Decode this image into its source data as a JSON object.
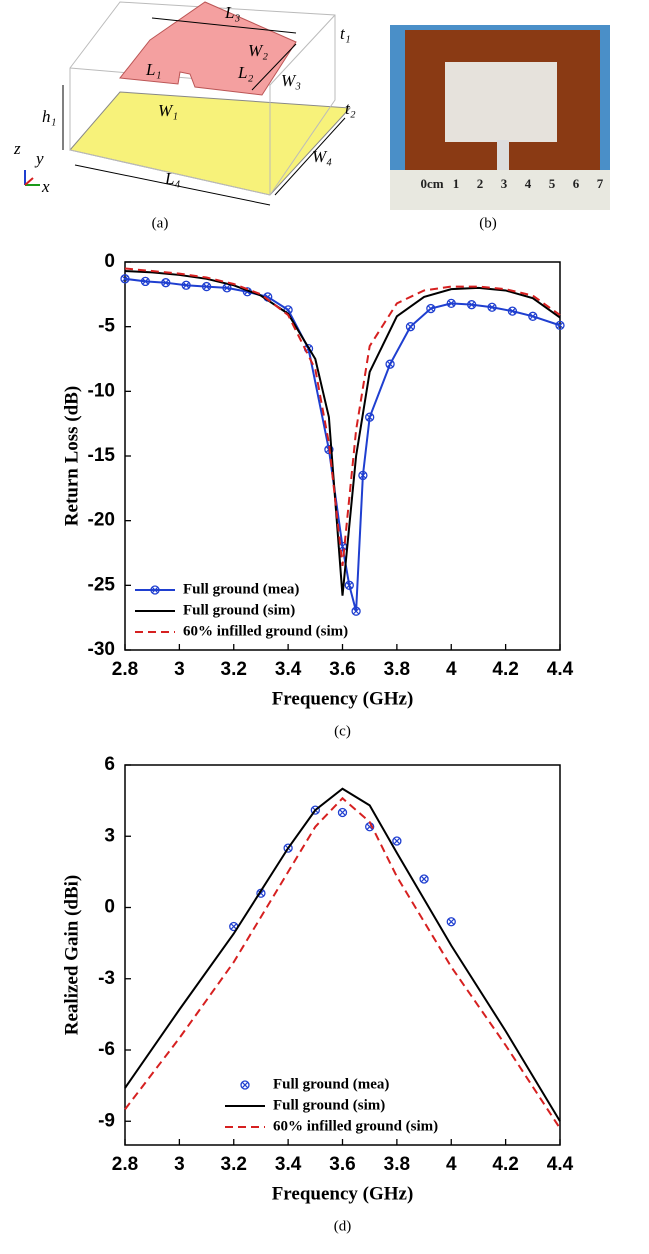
{
  "figure": {
    "captions": [
      "(a)",
      "(b)"
    ],
    "diagram": {
      "labels": [
        "L₃",
        "t₁",
        "W₂",
        "L₁",
        "L₂",
        "W₃",
        "h₁",
        "W₁",
        "t₂",
        "W₄",
        "L₄",
        "z",
        "y",
        "x"
      ]
    },
    "photo": {
      "ruler_labels": [
        "0cm",
        "1",
        "2",
        "3",
        "4",
        "5",
        "6",
        "7"
      ]
    }
  },
  "chart_data": [
    {
      "type": "line",
      "caption": "(c)",
      "x_label": "Frequency (GHz)",
      "y_label": "Return Loss (dB)",
      "xlim": [
        2.8,
        4.4
      ],
      "xticks": [
        2.8,
        3.0,
        3.2,
        3.4,
        3.6,
        3.8,
        4.0,
        4.2,
        4.4
      ],
      "ylim": [
        -30,
        0
      ],
      "yticks": [
        -30,
        -25,
        -20,
        -15,
        -10,
        -5,
        0
      ],
      "legend": "lower-left",
      "series": [
        {
          "name": "Full ground (mea)",
          "color": "#1f3fd0",
          "mode": "line+markers",
          "dash": false,
          "x": [
            2.8,
            2.875,
            2.95,
            3.025,
            3.1,
            3.175,
            3.25,
            3.325,
            3.4,
            3.475,
            3.55,
            3.6,
            3.625,
            3.65,
            3.675,
            3.7,
            3.775,
            3.85,
            3.925,
            4.0,
            4.075,
            4.15,
            4.225,
            4.3,
            4.4
          ],
          "values": [
            -1.3,
            -1.5,
            -1.6,
            -1.8,
            -1.9,
            -2.0,
            -2.3,
            -2.7,
            -3.7,
            -6.7,
            -14.5,
            -22,
            -25,
            -27,
            -16.5,
            -12,
            -7.9,
            -5.0,
            -3.6,
            -3.2,
            -3.3,
            -3.5,
            -3.8,
            -4.2,
            -4.9
          ]
        },
        {
          "name": "Full ground (sim)",
          "color": "#000000",
          "mode": "line",
          "dash": false,
          "x": [
            2.8,
            2.9,
            3.0,
            3.1,
            3.2,
            3.3,
            3.4,
            3.5,
            3.55,
            3.6,
            3.65,
            3.7,
            3.8,
            3.9,
            4.0,
            4.1,
            4.2,
            4.3,
            4.4
          ],
          "values": [
            -0.7,
            -0.8,
            -1.0,
            -1.3,
            -1.8,
            -2.6,
            -4.0,
            -7.5,
            -12,
            -25.8,
            -15,
            -8.5,
            -4.2,
            -2.7,
            -2.1,
            -2.0,
            -2.2,
            -2.8,
            -4.3
          ]
        },
        {
          "name": "60% infilled ground (sim)",
          "color": "#d62020",
          "mode": "line",
          "dash": true,
          "x": [
            2.8,
            2.9,
            3.0,
            3.1,
            3.2,
            3.3,
            3.4,
            3.5,
            3.55,
            3.6,
            3.65,
            3.7,
            3.8,
            3.9,
            4.0,
            4.1,
            4.2,
            4.3,
            4.4
          ],
          "values": [
            -0.5,
            -0.7,
            -0.9,
            -1.2,
            -1.7,
            -2.5,
            -4.1,
            -8.3,
            -14,
            -23.5,
            -13,
            -6.5,
            -3.2,
            -2.2,
            -1.9,
            -1.9,
            -2.1,
            -2.6,
            -4.1
          ]
        }
      ]
    },
    {
      "type": "line",
      "caption": "(d)",
      "x_label": "Frequency (GHz)",
      "y_label": "Realized Gain (dBi)",
      "xlim": [
        2.8,
        4.4
      ],
      "xticks": [
        2.8,
        3.0,
        3.2,
        3.4,
        3.6,
        3.8,
        4.0,
        4.2,
        4.4
      ],
      "ylim": [
        -10,
        6
      ],
      "yticks": [
        -9,
        -6,
        -3,
        0,
        3,
        6
      ],
      "legend": "lower-center",
      "series": [
        {
          "name": "Full ground (mea)",
          "color": "#1f3fd0",
          "mode": "markers",
          "dash": false,
          "x": [
            3.2,
            3.3,
            3.4,
            3.5,
            3.6,
            3.7,
            3.8,
            3.9,
            4.0
          ],
          "values": [
            -0.8,
            0.6,
            2.5,
            4.1,
            4.0,
            3.4,
            2.8,
            1.2,
            -0.6
          ]
        },
        {
          "name": "Full ground (sim)",
          "color": "#000000",
          "mode": "line",
          "dash": false,
          "x": [
            2.8,
            3.0,
            3.2,
            3.4,
            3.5,
            3.6,
            3.7,
            3.8,
            4.0,
            4.2,
            4.4
          ],
          "values": [
            -7.6,
            -4.3,
            -1.1,
            2.5,
            4.1,
            5.0,
            4.3,
            2.3,
            -1.6,
            -5.2,
            -9.0
          ]
        },
        {
          "name": "60% infilled ground (sim)",
          "color": "#d62020",
          "mode": "line",
          "dash": true,
          "x": [
            2.8,
            3.0,
            3.2,
            3.4,
            3.5,
            3.6,
            3.7,
            3.8,
            4.0,
            4.2,
            4.4
          ],
          "values": [
            -8.5,
            -5.5,
            -2.3,
            1.5,
            3.4,
            4.6,
            3.6,
            1.3,
            -2.5,
            -5.8,
            -9.3
          ]
        }
      ]
    }
  ]
}
